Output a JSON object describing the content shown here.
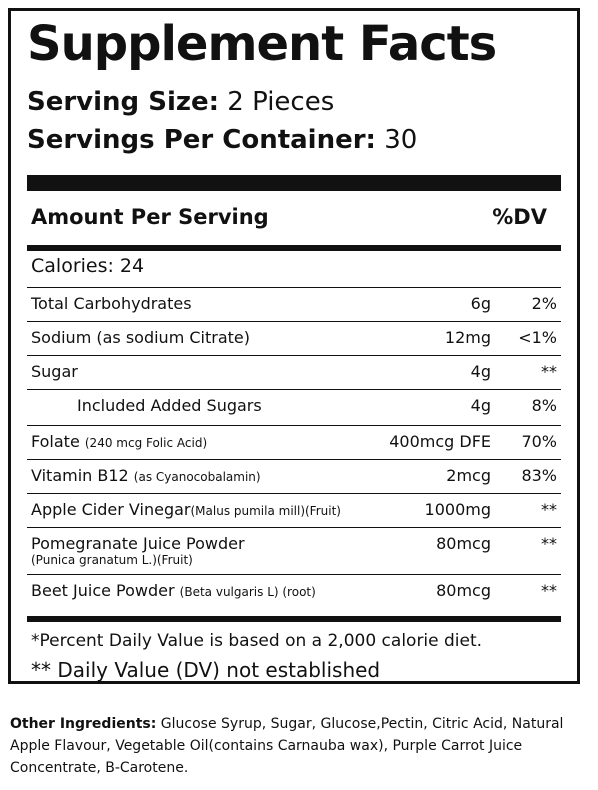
{
  "label": {
    "title": "Supplement Facts",
    "serving_size_label": "Serving Size:",
    "serving_size_value": " 2 Pieces",
    "servings_label": "Servings Per Container:",
    "servings_value": " 30",
    "amount_header": "Amount Per Serving",
    "dv_header": "%DV",
    "calories": "Calories: 24",
    "rows": [
      {
        "name": "Total Carbohydrates",
        "detail": "",
        "sub": "",
        "amount": "6g",
        "dv": "2%",
        "indent": false
      },
      {
        "name": "Sodium (as sodium Citrate)",
        "detail": "",
        "sub": "",
        "amount": "12mg",
        "dv": "<1%",
        "indent": false
      },
      {
        "name": "Sugar",
        "detail": "",
        "sub": "",
        "amount": "4g",
        "dv": "**",
        "indent": false
      },
      {
        "name": "Included Added Sugars",
        "detail": "",
        "sub": "",
        "amount": "4g",
        "dv": "8%",
        "indent": true
      },
      {
        "name": "Folate ",
        "detail": "(240 mcg Folic Acid)",
        "sub": "",
        "amount": "400mcg DFE",
        "dv": "70%",
        "indent": false
      },
      {
        "name": "Vitamin B12 ",
        "detail": "(as Cyanocobalamin)",
        "sub": "",
        "amount": "2mcg",
        "dv": "83%",
        "indent": false
      },
      {
        "name": "Apple Cider Vinegar",
        "detail": "(Malus pumila mill)(Fruit)",
        "sub": "",
        "amount": "1000mg",
        "dv": "**",
        "indent": false
      },
      {
        "name": "Pomegranate Juice Powder",
        "detail": "",
        "sub": "(Punica granatum L.)(Fruit)",
        "amount": "80mcg",
        "dv": "**",
        "indent": false
      },
      {
        "name": "Beet Juice Powder ",
        "detail": "(Beta vulgaris L) (root)",
        "sub": "",
        "amount": "80mcg",
        "dv": "**",
        "indent": false
      }
    ],
    "footnote_1": "*Percent Daily Value is based on a 2,000 calorie diet.",
    "footnote_2": "** Daily Value (DV) not established"
  },
  "other_ingredients": {
    "label": "Other Ingredients:",
    "text": " Glucose Syrup, Sugar, Glucose,Pectin, Citric Acid,  Natural Apple Flavour, Vegetable Oil(contains Carnauba wax), Purple Carrot Juice Concentrate, B-Carotene."
  }
}
